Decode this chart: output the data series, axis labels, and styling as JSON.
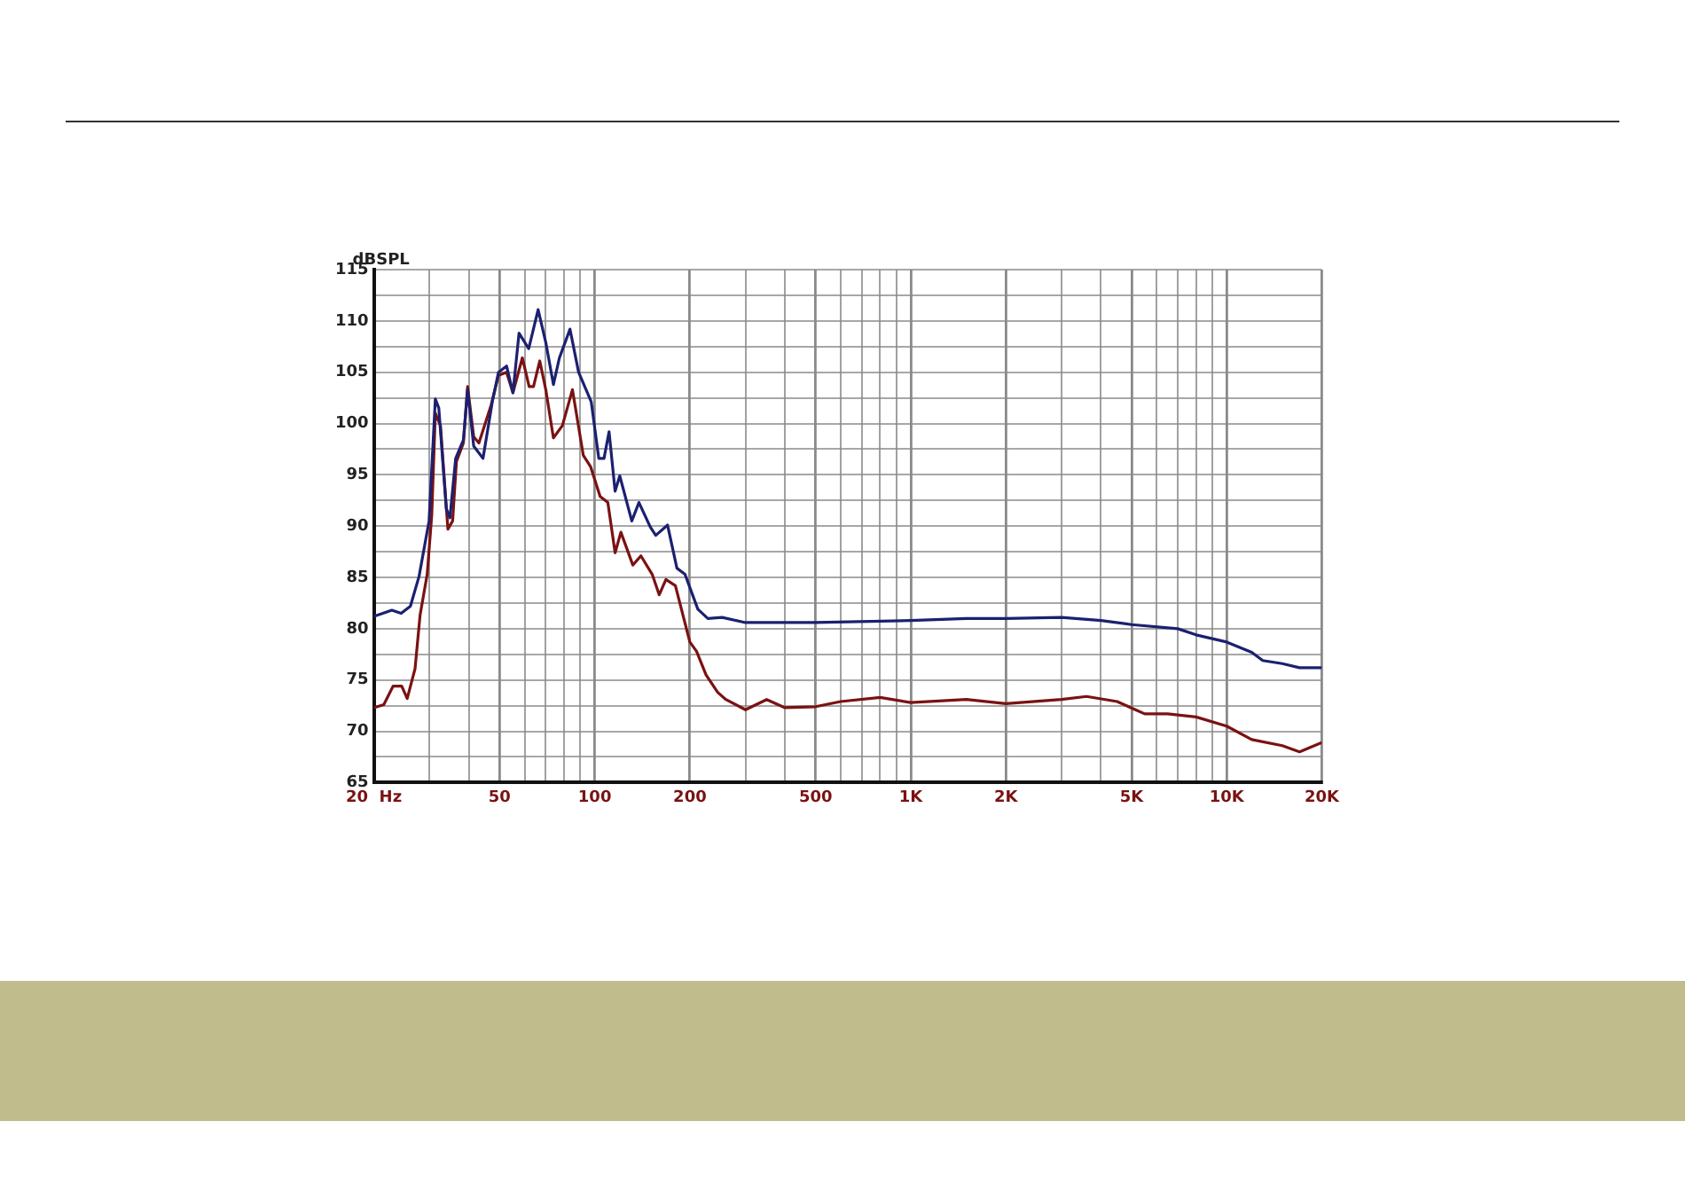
{
  "chart_data": {
    "type": "line",
    "ylabel": "dBSPL",
    "xlim": [
      20,
      20000
    ],
    "ylim": [
      65,
      115
    ],
    "xticks": [
      {
        "value": 20,
        "label": "20  Hz"
      },
      {
        "value": 30,
        "label": null
      },
      {
        "value": 40,
        "label": null
      },
      {
        "value": 50,
        "label": "50"
      },
      {
        "value": 60,
        "label": null
      },
      {
        "value": 70,
        "label": null
      },
      {
        "value": 80,
        "label": null
      },
      {
        "value": 90,
        "label": null
      },
      {
        "value": 100,
        "label": "100"
      },
      {
        "value": 200,
        "label": "200"
      },
      {
        "value": 300,
        "label": null
      },
      {
        "value": 400,
        "label": null
      },
      {
        "value": 500,
        "label": "500"
      },
      {
        "value": 600,
        "label": null
      },
      {
        "value": 700,
        "label": null
      },
      {
        "value": 800,
        "label": null
      },
      {
        "value": 900,
        "label": null
      },
      {
        "value": 1000,
        "label": "1K"
      },
      {
        "value": 2000,
        "label": "2K"
      },
      {
        "value": 3000,
        "label": null
      },
      {
        "value": 4000,
        "label": null
      },
      {
        "value": 5000,
        "label": "5K"
      },
      {
        "value": 6000,
        "label": null
      },
      {
        "value": 7000,
        "label": null
      },
      {
        "value": 8000,
        "label": null
      },
      {
        "value": 9000,
        "label": null
      },
      {
        "value": 10000,
        "label": "10K"
      },
      {
        "value": 20000,
        "label": "20K"
      }
    ],
    "yticks": [
      65,
      {
        "value": 67.5,
        "label": null
      },
      70,
      {
        "value": 72.5,
        "label": null
      },
      75,
      {
        "value": 77.5,
        "label": null
      },
      80,
      {
        "value": 82.5,
        "label": null
      },
      85,
      {
        "value": 87.5,
        "label": null
      },
      90,
      {
        "value": 92.5,
        "label": null
      },
      95,
      {
        "value": 97.5,
        "label": null
      },
      100,
      {
        "value": 102.5,
        "label": null
      },
      105,
      {
        "value": 107.5,
        "label": null
      },
      110,
      {
        "value": 112.5,
        "label": null
      },
      115
    ],
    "log": "x",
    "grid": true,
    "legend": false,
    "marker": "none",
    "line_style": "solid",
    "series": [
      {
        "color": "#1c2070",
        "x": [
          20,
          22.8,
          24.4,
          26.1,
          27.8,
          29.9,
          31.3,
          32.1,
          33.9,
          34.8,
          36.3,
          38.4,
          39.6,
          41.4,
          44.3,
          47.4,
          49.6,
          52.6,
          55.1,
          57.6,
          61.8,
          66.2,
          70,
          74,
          77.3,
          83.5,
          88.9,
          94.8,
          97.5,
          103,
          107,
          111,
          116,
          120,
          131,
          138,
          150,
          156,
          170,
          182,
          193,
          212,
          228,
          253,
          300,
          500,
          1000,
          1500,
          2000,
          3000,
          4000,
          5000,
          7000,
          8000,
          10000,
          12000,
          13000,
          15000,
          17000,
          20000
        ],
        "values": [
          81.2,
          81.8,
          81.5,
          82.2,
          85.1,
          90.5,
          102.4,
          101.5,
          91.7,
          90.8,
          96.6,
          98.4,
          103.3,
          97.8,
          96.6,
          102.1,
          105,
          105.6,
          103,
          108.8,
          107.3,
          111.1,
          107.9,
          103.8,
          106.4,
          109.2,
          105,
          103,
          102.1,
          96.6,
          96.6,
          99.2,
          93.4,
          94.9,
          90.5,
          92.3,
          89.9,
          89.1,
          90.1,
          85.9,
          85.3,
          81.9,
          81,
          81.1,
          80.6,
          80.6,
          80.8,
          81,
          81,
          81.1,
          80.8,
          80.4,
          80,
          79.4,
          78.7,
          77.7,
          76.9,
          76.6,
          76.2,
          76.2
        ]
      },
      {
        "color": "#7a1212",
        "x": [
          20,
          21.5,
          23,
          24.5,
          25.5,
          27,
          28,
          29.5,
          30.5,
          31.3,
          32.5,
          34.3,
          35.5,
          36.5,
          38.4,
          39.6,
          41.4,
          43,
          47,
          49.6,
          52.6,
          55.1,
          59,
          62,
          64,
          67,
          70,
          74,
          79,
          85,
          92,
          97,
          104,
          110,
          116,
          121,
          132,
          140,
          152,
          160,
          168,
          180,
          200,
          210,
          225,
          245,
          260,
          300,
          350,
          400,
          500,
          600,
          800,
          1000,
          1500,
          2000,
          3000,
          3600,
          4500,
          5500,
          6500,
          8000,
          10000,
          12000,
          15000,
          17000,
          20000
        ],
        "values": [
          72.3,
          72.6,
          74.4,
          74.4,
          73.2,
          76.1,
          81.3,
          85.3,
          91.1,
          101,
          99.8,
          89.7,
          90.5,
          96.3,
          98.1,
          103.6,
          98.7,
          98.1,
          101.8,
          104.7,
          105,
          103,
          106.4,
          103.6,
          103.6,
          106.1,
          103.3,
          98.6,
          99.8,
          103.3,
          96.9,
          95.8,
          92.9,
          92.3,
          87.4,
          89.4,
          86.2,
          87.1,
          85.3,
          83.3,
          84.8,
          84.2,
          78.7,
          77.8,
          75.5,
          73.8,
          73.1,
          72.1,
          73.1,
          72.3,
          72.4,
          72.9,
          73.3,
          72.8,
          73.1,
          72.7,
          73.1,
          73.4,
          72.9,
          71.7,
          71.7,
          71.4,
          70.5,
          69.2,
          68.6,
          68,
          68.9
        ]
      }
    ]
  }
}
